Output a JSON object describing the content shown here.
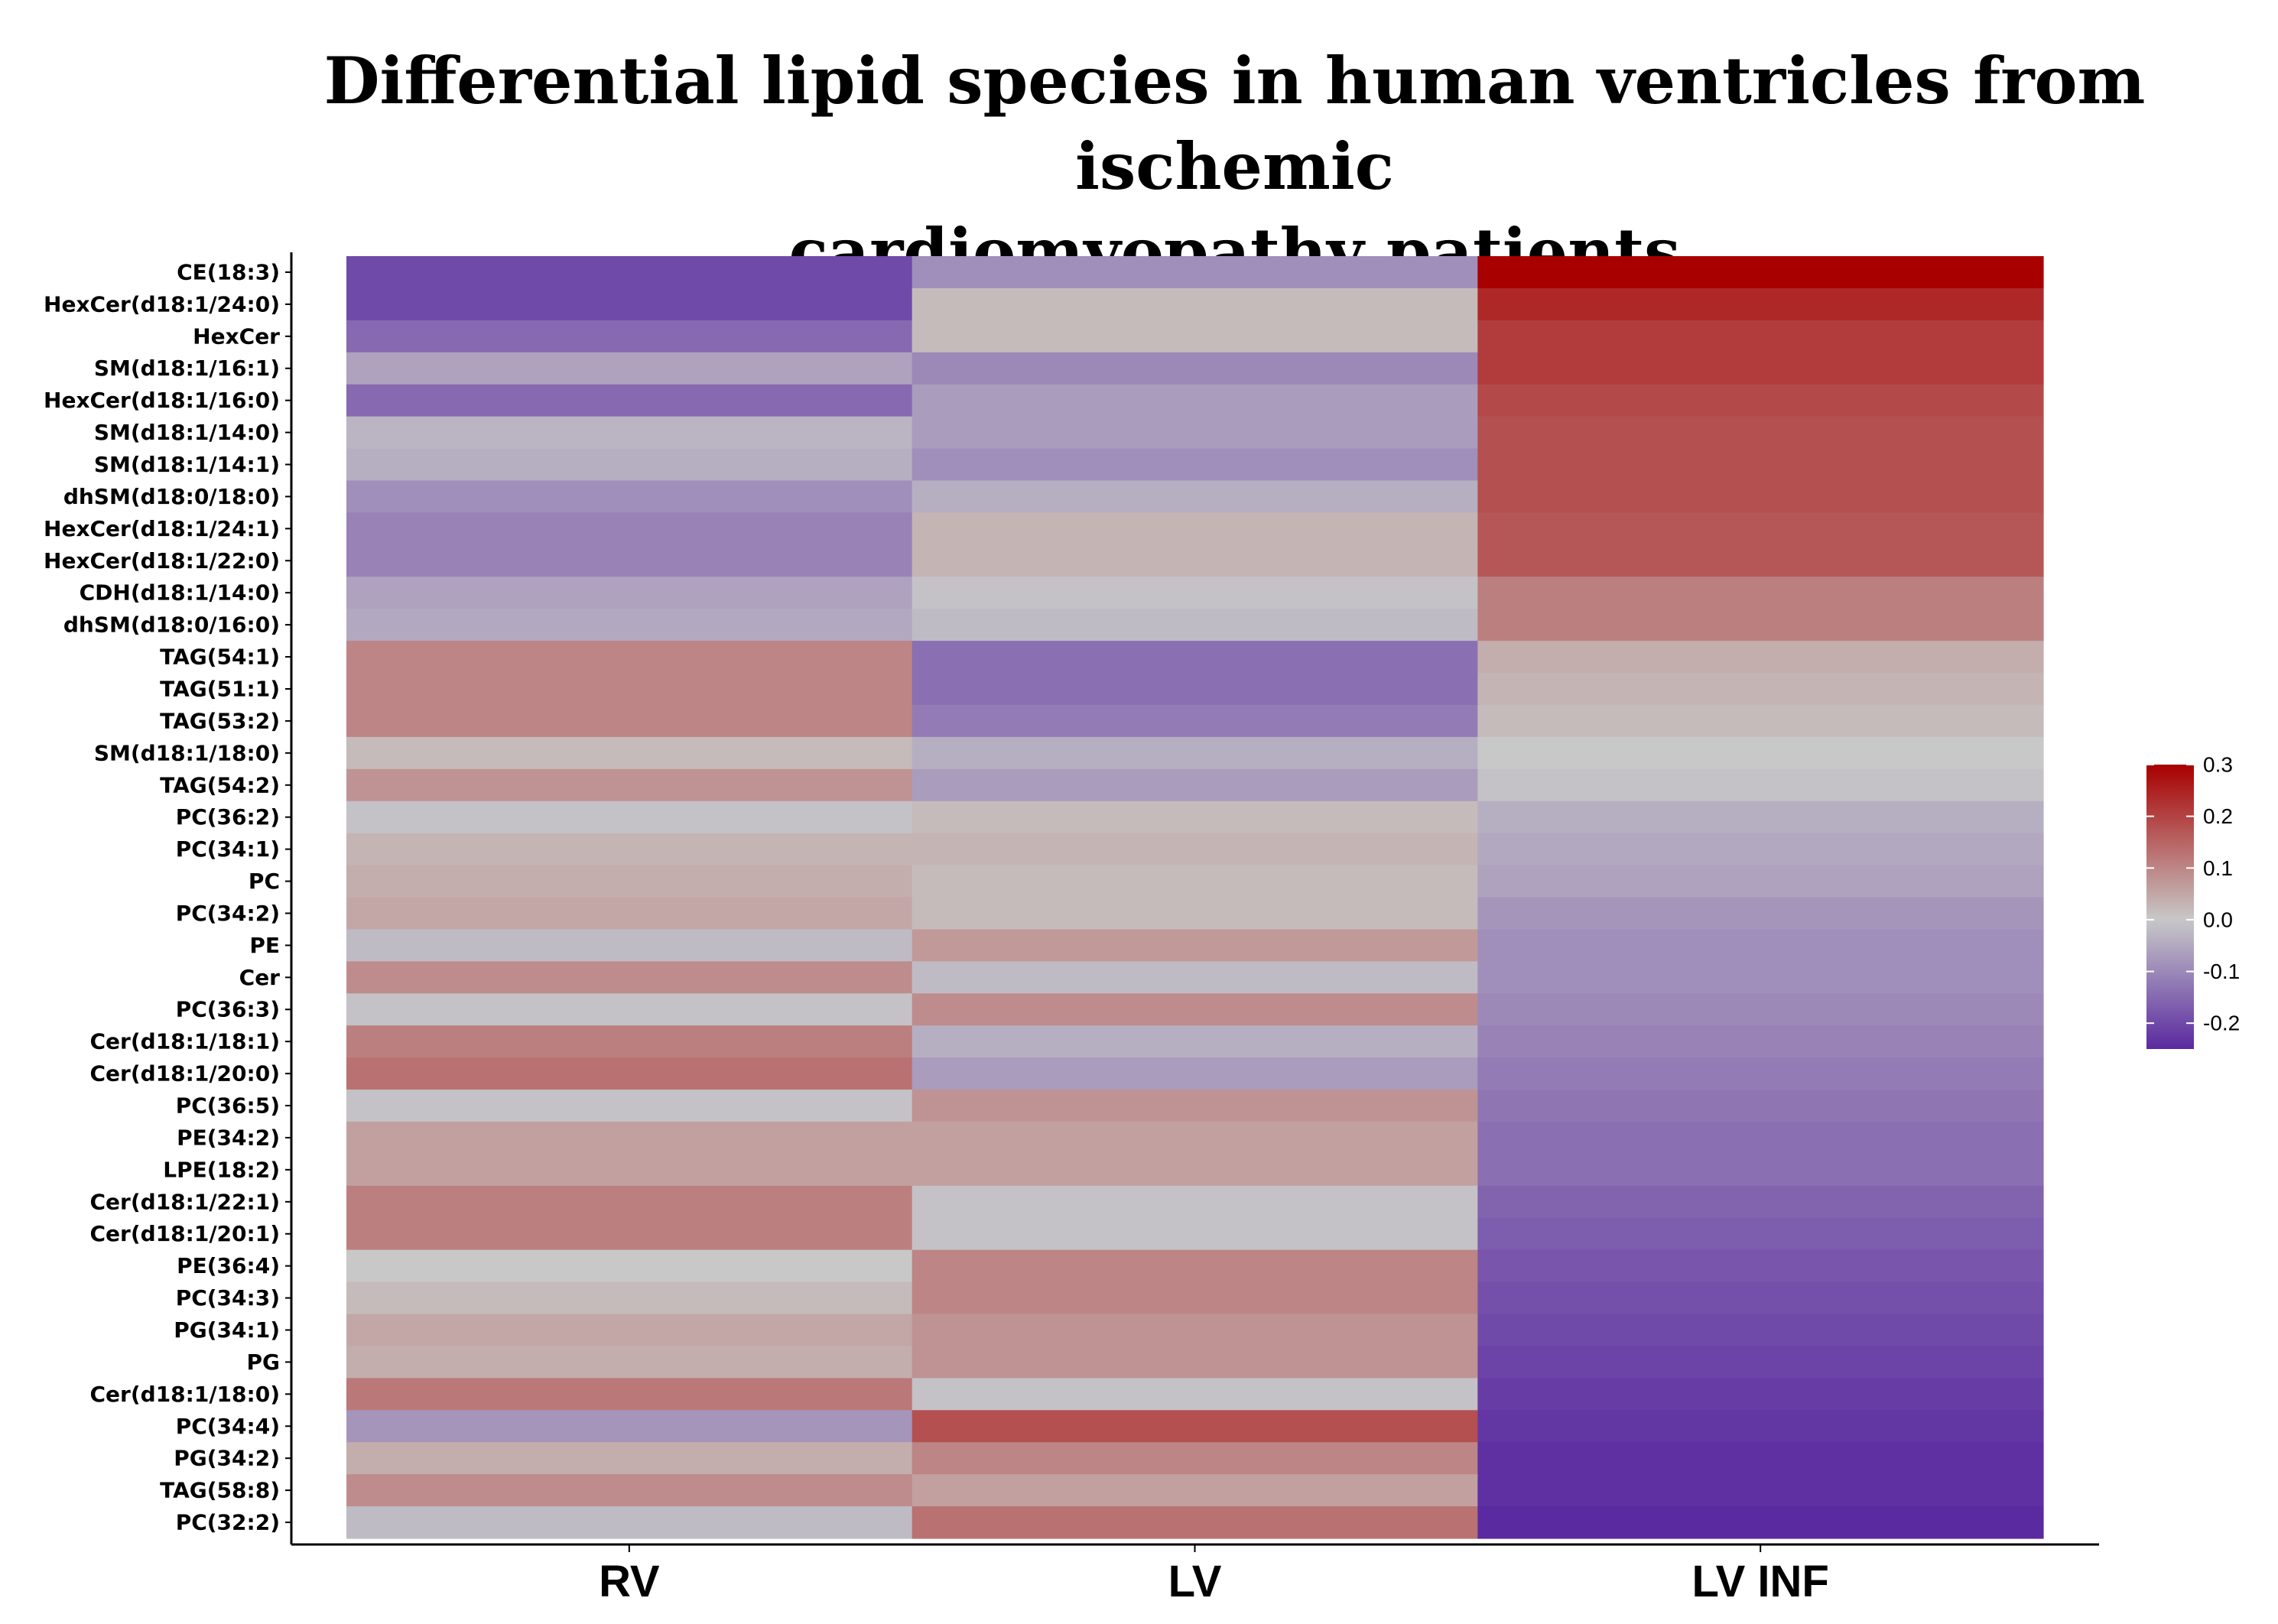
{
  "chart_data": {
    "type": "heatmap",
    "title_lines": [
      "Differential lipid species in human ventricles from ischemic",
      "cardiomyopathy patients"
    ],
    "columns": [
      "RV",
      "LV",
      "LV INF"
    ],
    "rows": [
      "CE(18:3)",
      "HexCer(d18:1/24:0)",
      "HexCer",
      "SM(d18:1/16:1)",
      "HexCer(d18:1/16:0)",
      "SM(d18:1/14:0)",
      "SM(d18:1/14:1)",
      "dhSM(d18:0/18:0)",
      "HexCer(d18:1/24:1)",
      "HexCer(d18:1/22:0)",
      "CDH(d18:1/14:0)",
      "dhSM(d18:0/16:0)",
      "TAG(54:1)",
      "TAG(51:1)",
      "TAG(53:2)",
      "SM(d18:1/18:0)",
      "TAG(54:2)",
      "PC(36:2)",
      "PC(34:1)",
      "PC",
      "PC(34:2)",
      "PE",
      "Cer",
      "PC(36:3)",
      "Cer(d18:1/18:1)",
      "Cer(d18:1/20:0)",
      "PC(36:5)",
      "PE(34:2)",
      "LPE(18:2)",
      "Cer(d18:1/22:1)",
      "Cer(d18:1/20:1)",
      "PE(36:4)",
      "PC(34:3)",
      "PG(34:1)",
      "PG",
      "Cer(d18:1/18:0)",
      "PC(34:4)",
      "PG(34:2)",
      "TAG(58:8)",
      "PC(32:2)"
    ],
    "values": [
      [
        -0.2,
        -0.09,
        0.3
      ],
      [
        -0.2,
        0.02,
        0.24
      ],
      [
        -0.15,
        0.02,
        0.21
      ],
      [
        -0.06,
        -0.1,
        0.21
      ],
      [
        -0.15,
        -0.07,
        0.19
      ],
      [
        -0.03,
        -0.07,
        0.18
      ],
      [
        -0.04,
        -0.09,
        0.18
      ],
      [
        -0.09,
        -0.04,
        0.18
      ],
      [
        -0.11,
        0.03,
        0.17
      ],
      [
        -0.11,
        0.03,
        0.17
      ],
      [
        -0.06,
        -0.01,
        0.11
      ],
      [
        -0.05,
        -0.02,
        0.11
      ],
      [
        0.1,
        -0.14,
        0.04
      ],
      [
        0.1,
        -0.14,
        0.03
      ],
      [
        0.1,
        -0.12,
        0.02
      ],
      [
        0.02,
        -0.04,
        0.0
      ],
      [
        0.08,
        -0.07,
        -0.01
      ],
      [
        -0.01,
        0.02,
        -0.04
      ],
      [
        0.03,
        0.03,
        -0.05
      ],
      [
        0.04,
        0.02,
        -0.06
      ],
      [
        0.05,
        0.02,
        -0.08
      ],
      [
        -0.02,
        0.07,
        -0.09
      ],
      [
        0.09,
        -0.02,
        -0.09
      ],
      [
        -0.01,
        0.09,
        -0.1
      ],
      [
        0.11,
        -0.04,
        -0.11
      ],
      [
        0.13,
        -0.07,
        -0.12
      ],
      [
        -0.01,
        0.08,
        -0.13
      ],
      [
        0.06,
        0.06,
        -0.14
      ],
      [
        0.06,
        0.06,
        -0.14
      ],
      [
        0.11,
        -0.01,
        -0.16
      ],
      [
        0.11,
        -0.01,
        -0.17
      ],
      [
        0.0,
        0.1,
        -0.18
      ],
      [
        0.02,
        0.1,
        -0.19
      ],
      [
        0.05,
        0.08,
        -0.2
      ],
      [
        0.04,
        0.08,
        -0.21
      ],
      [
        0.12,
        -0.01,
        -0.22
      ],
      [
        -0.08,
        0.18,
        -0.23
      ],
      [
        0.04,
        0.1,
        -0.24
      ],
      [
        0.09,
        0.06,
        -0.24
      ],
      [
        -0.02,
        0.13,
        -0.26
      ]
    ],
    "legend": {
      "ticks": [
        0.3,
        0.2,
        0.1,
        0.0,
        -0.1,
        -0.2
      ],
      "tick_labels": [
        "0.3",
        "0.2",
        "0.1",
        "0.0",
        "-0.1",
        "-0.2"
      ],
      "range": [
        -0.25,
        0.3
      ],
      "placement": "right"
    },
    "colors": {
      "low": "#5a2aa0",
      "mid": "#c8c8c8",
      "high": "#a80000"
    }
  }
}
